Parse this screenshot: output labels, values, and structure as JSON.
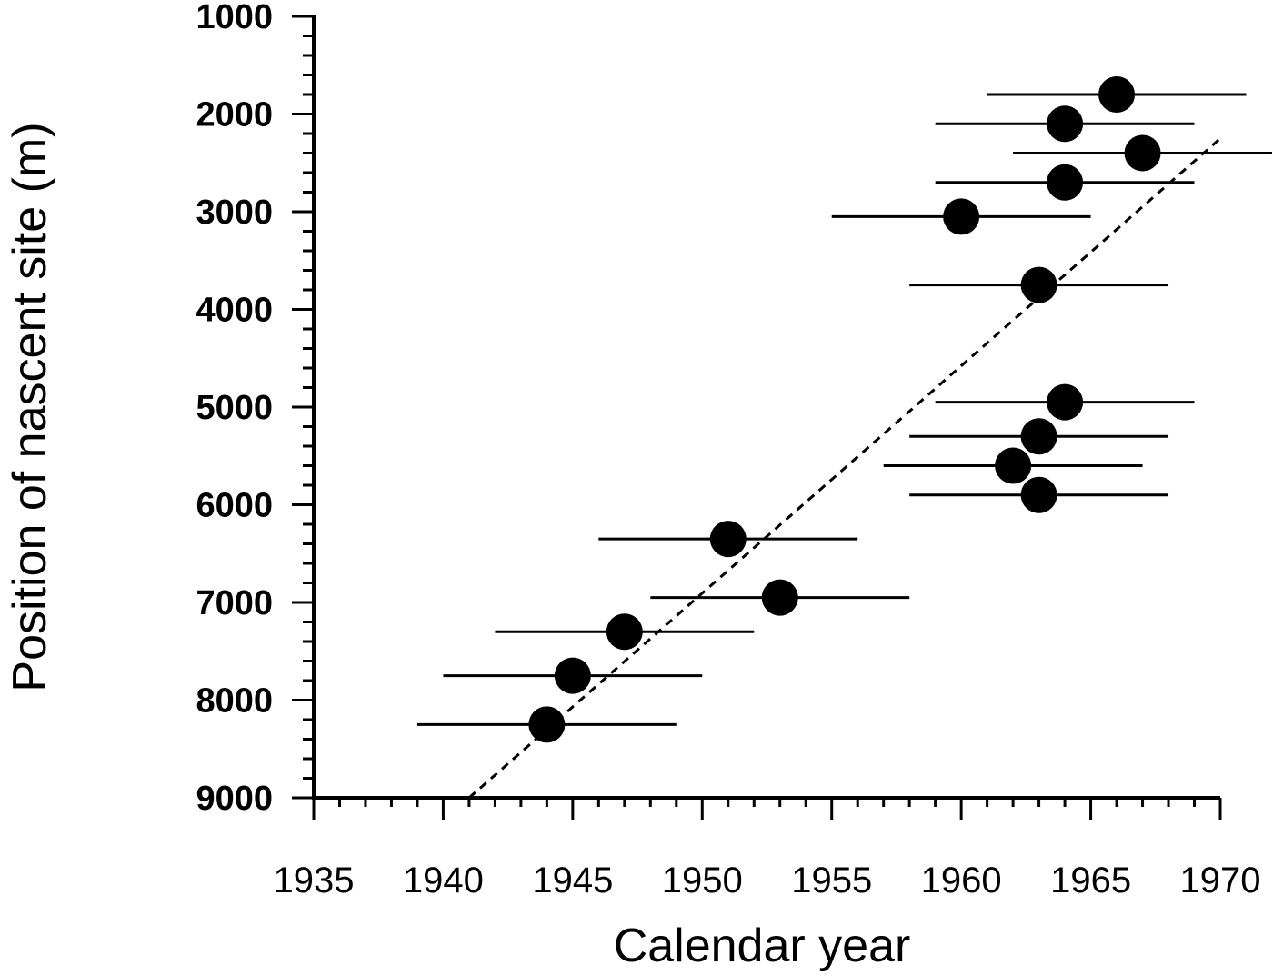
{
  "chart_data": {
    "type": "scatter",
    "title": "",
    "xlabel": "Calendar year",
    "ylabel": "Position of nascent site (m)",
    "xlim": [
      1935,
      1970
    ],
    "ylim": [
      1000,
      9000
    ],
    "y_inverted": true,
    "grid": false,
    "legend": "none",
    "xticks": [
      "1935",
      "1940",
      "1945",
      "1950",
      "1955",
      "1960",
      "1965",
      "1970"
    ],
    "yticks": [
      "1000",
      "2000",
      "3000",
      "4000",
      "5000",
      "6000",
      "7000",
      "8000",
      "9000"
    ],
    "points": [
      {
        "x": 1966,
        "y": 1800,
        "xerr_low": 1961,
        "xerr_high": 1971
      },
      {
        "x": 1964,
        "y": 2100,
        "xerr_low": 1959,
        "xerr_high": 1969
      },
      {
        "x": 1967,
        "y": 2400,
        "xerr_low": 1962,
        "xerr_high": 1972
      },
      {
        "x": 1964,
        "y": 2700,
        "xerr_low": 1959,
        "xerr_high": 1969
      },
      {
        "x": 1960,
        "y": 3050,
        "xerr_low": 1955,
        "xerr_high": 1965
      },
      {
        "x": 1963,
        "y": 3750,
        "xerr_low": 1958,
        "xerr_high": 1968
      },
      {
        "x": 1964,
        "y": 4950,
        "xerr_low": 1959,
        "xerr_high": 1969
      },
      {
        "x": 1963,
        "y": 5300,
        "xerr_low": 1958,
        "xerr_high": 1968
      },
      {
        "x": 1962,
        "y": 5600,
        "xerr_low": 1957,
        "xerr_high": 1967
      },
      {
        "x": 1963,
        "y": 5900,
        "xerr_low": 1958,
        "xerr_high": 1968
      },
      {
        "x": 1951,
        "y": 6350,
        "xerr_low": 1946,
        "xerr_high": 1956
      },
      {
        "x": 1953,
        "y": 6950,
        "xerr_low": 1948,
        "xerr_high": 1958
      },
      {
        "x": 1947,
        "y": 7300,
        "xerr_low": 1942,
        "xerr_high": 1952
      },
      {
        "x": 1945,
        "y": 7750,
        "xerr_low": 1940,
        "xerr_high": 1950
      },
      {
        "x": 1944,
        "y": 8250,
        "xerr_low": 1939,
        "xerr_high": 1949
      }
    ],
    "fit_line": {
      "style": "dashed",
      "x": [
        1941,
        1970
      ],
      "y": [
        9000,
        2250
      ]
    },
    "colors": {
      "marker": "#000000",
      "line": "#000000"
    }
  }
}
